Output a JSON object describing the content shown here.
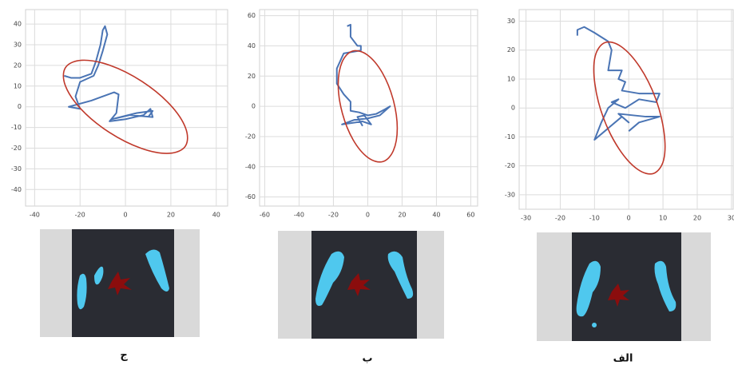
{
  "chart_data": [
    {
      "type": "line",
      "caption": "ج",
      "xlim": [
        -44,
        45
      ],
      "ylim": [
        -48,
        47
      ],
      "xticks": [
        -40,
        -20,
        0,
        20,
        40
      ],
      "yticks": [
        -40,
        -30,
        -20,
        -10,
        0,
        10,
        20,
        30,
        40
      ],
      "grid": true,
      "series": [
        {
          "color": "#4a74b4",
          "closed": false,
          "x": [
            -27,
            -24,
            -20,
            -15,
            -13,
            -11,
            -10,
            -9,
            -8,
            -10,
            -12,
            -14,
            -20,
            -22,
            -20,
            -25,
            -15,
            -5,
            -3,
            -4,
            -7,
            0,
            8,
            11,
            12,
            2,
            -6,
            5,
            12,
            10
          ],
          "values": [
            15,
            14,
            14,
            16,
            22,
            30,
            37,
            39,
            35,
            27,
            20,
            15,
            12,
            5,
            -1,
            0,
            3,
            7,
            6,
            -3,
            -7,
            -6,
            -4,
            -1,
            -5,
            -4,
            -6,
            -3,
            -2,
            -5
          ]
        },
        {
          "color": "#c0392b",
          "closed": true,
          "x": [
            26.4,
            19.2,
            7.0,
            -7.2,
            -19.5,
            -26.5,
            -26.4,
            -19.2,
            -7.0,
            7.2,
            19.5,
            26.5
          ],
          "values": [
            -19.0,
            -22.5,
            -20.1,
            -12.3,
            -1.2,
            10.3,
            19.0,
            22.5,
            20.1,
            12.3,
            1.2,
            -10.3
          ]
        }
      ]
    },
    {
      "type": "line",
      "caption": "ب",
      "xlim": [
        -63,
        64
      ],
      "ylim": [
        -66,
        64
      ],
      "xticks": [
        -60,
        -40,
        -20,
        0,
        20,
        40,
        60
      ],
      "yticks": [
        -60,
        -40,
        -20,
        0,
        20,
        40,
        60
      ],
      "grid": true,
      "series": [
        {
          "color": "#4a74b4",
          "closed": false,
          "x": [
            -12,
            -10,
            -10,
            -6,
            -4,
            -4,
            -14,
            -18,
            -18,
            -14,
            -10,
            -10,
            -5,
            0,
            5,
            10,
            13,
            7,
            0,
            -8,
            -15,
            -3,
            2,
            -2,
            -6,
            -3
          ],
          "values": [
            53,
            54,
            46,
            40,
            40,
            37,
            35,
            25,
            15,
            8,
            3,
            -3,
            -4,
            -6,
            -5,
            -2,
            0,
            -6,
            -8,
            -9,
            -12,
            -10,
            -12,
            -6,
            -7,
            -13
          ]
        },
        {
          "color": "#c0392b",
          "closed": true,
          "x": [
            8.7,
            0.1,
            -8.5,
            -14.8,
            -17.2,
            -14.9,
            -8.7,
            -0.1,
            8.5,
            14.8,
            17.2,
            14.9
          ],
          "values": [
            -36.6,
            -33.9,
            -22.2,
            -4.5,
            14.4,
            29.4,
            36.6,
            33.9,
            22.2,
            4.5,
            -14.4,
            -29.4
          ]
        }
      ]
    },
    {
      "type": "line",
      "caption": "الف",
      "xlim": [
        -32,
        30.5
      ],
      "ylim": [
        -35,
        34
      ],
      "xticks": [
        -30,
        -20,
        -10,
        0,
        10,
        20,
        30
      ],
      "yticks": [
        -30,
        -20,
        -10,
        0,
        10,
        20,
        30
      ],
      "grid": true,
      "series": [
        {
          "color": "#4a74b4",
          "closed": false,
          "x": [
            -15,
            -15,
            -13,
            -10,
            -6,
            -5,
            -6,
            -2,
            -3,
            -1,
            -2,
            3,
            6,
            9,
            8,
            3,
            -1,
            -5,
            -3,
            -6,
            -8,
            -10,
            -7,
            -2,
            0,
            -3,
            5,
            9,
            3,
            0
          ],
          "values": [
            25,
            27,
            28,
            26,
            23,
            20,
            13,
            13,
            10,
            9,
            6,
            5,
            5,
            5,
            2,
            3,
            0,
            2,
            3,
            0,
            -5,
            -11,
            -8,
            -3,
            -5,
            -2,
            -3,
            -3,
            -5,
            -8
          ]
        },
        {
          "color": "#c0392b",
          "closed": true,
          "x": [
            7.3,
            2.6,
            -2.8,
            -7.4,
            -9.9,
            -9.8,
            -6.9,
            -2.2,
            3.2,
            7.8,
            10.3,
            10.2
          ],
          "values": [
            -22.6,
            -21.2,
            -14.2,
            -3.4,
            8.4,
            17.9,
            22.6,
            21.2,
            14.2,
            3.4,
            -8.4,
            -17.9
          ]
        }
      ]
    }
  ]
}
